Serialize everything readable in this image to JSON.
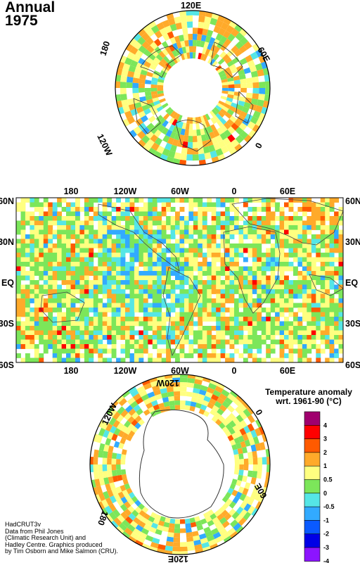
{
  "title": {
    "line1": "Annual",
    "line2": "1975"
  },
  "north_polar": {
    "lon_labels": {
      "top": "120E",
      "top_right": "60E",
      "right": "0",
      "top_left": "180",
      "bottom_left": "120W"
    }
  },
  "world_map": {
    "x_labels": [
      "180",
      "120W",
      "60W",
      "0",
      "60E"
    ],
    "y_labels": [
      "60N",
      "30N",
      "EQ",
      "30S",
      "60S"
    ]
  },
  "south_polar": {
    "lon_labels": {
      "top": "120W",
      "right_top": "0",
      "right_bottom": "60E",
      "bottom": "120E",
      "left": "180",
      "top_left": "120W"
    }
  },
  "legend": {
    "title_line1": "Temperature anomaly",
    "title_line2": "wrt. 1961-90  (°C)",
    "levels": [
      "4",
      "3",
      "2",
      "1",
      "0.5",
      "0",
      "-0.5",
      "-1",
      "-2",
      "-3",
      "-4"
    ],
    "colors": [
      "#a0006e",
      "#ff0000",
      "#ff5a00",
      "#ffaa2a",
      "#ffff80",
      "#7ce65a",
      "#55e6e6",
      "#32aaff",
      "#0a5aff",
      "#0000e6",
      "#8c14ff"
    ]
  },
  "credits": [
    "HadCRUT3v",
    "Data from Phil Jones",
    "(Climatic Research Unit) and",
    "Hadley Centre.  Graphics produced",
    "by Tim Osborn and Mike Salmon (CRU)."
  ]
}
